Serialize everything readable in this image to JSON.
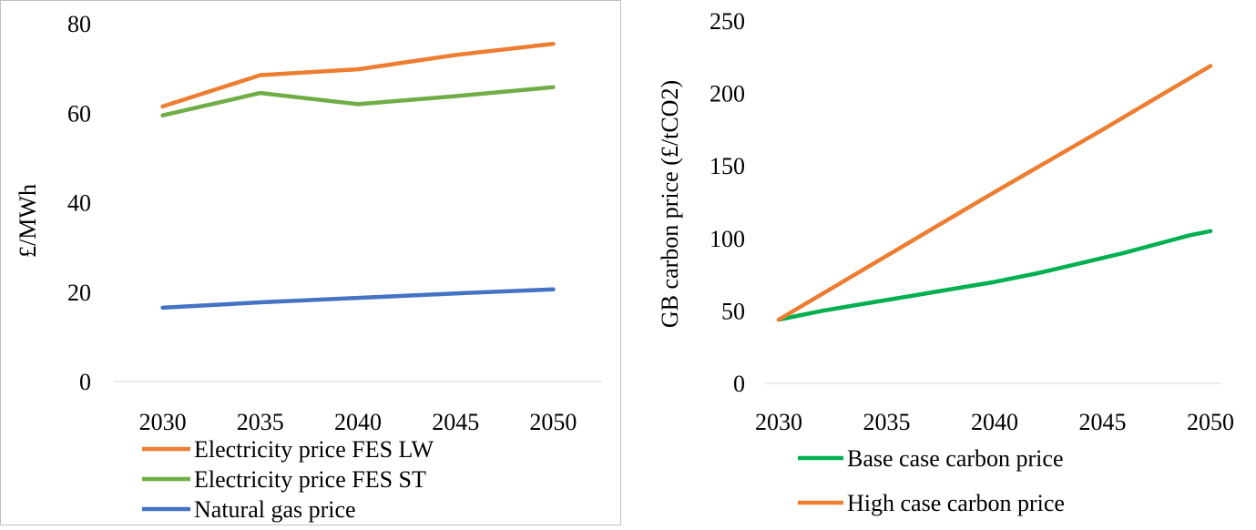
{
  "chart_data": [
    {
      "type": "line",
      "ylabel": "£/MWh",
      "ylim": [
        0,
        80
      ],
      "yticks": [
        0,
        20,
        40,
        60,
        80
      ],
      "categories": [
        "2030",
        "2035",
        "2040",
        "2045",
        "2050"
      ],
      "grid": false,
      "legend_position": "bottom",
      "series": [
        {
          "name": "Electricity price FES LW",
          "color": "#ED7D31",
          "values": [
            61.5,
            68.5,
            69.8,
            73.0,
            75.5
          ]
        },
        {
          "name": "Electricity price FES ST",
          "color": "#70AD47",
          "values": [
            59.5,
            64.5,
            62.0,
            63.8,
            65.8
          ]
        },
        {
          "name": "Natural gas price",
          "color": "#4472C4",
          "values": [
            16.5,
            17.7,
            18.7,
            19.7,
            20.6
          ]
        }
      ]
    },
    {
      "type": "line",
      "ylabel": "GB carbon price (£/tCO2)",
      "ylim": [
        0,
        250
      ],
      "yticks": [
        0,
        50,
        100,
        150,
        200,
        250
      ],
      "xlim": [
        2030,
        2050
      ],
      "xticks": [
        2030,
        2035,
        2040,
        2045,
        2050
      ],
      "grid": false,
      "legend_position": "bottom",
      "series": [
        {
          "name": "Base case carbon price",
          "color": "#00B050",
          "x": [
            2030,
            2032,
            2034,
            2036,
            2038,
            2040,
            2042,
            2044,
            2046,
            2048,
            2049,
            2050
          ],
          "y": [
            44,
            50,
            55,
            60,
            65,
            70,
            76,
            83,
            90,
            98,
            102,
            105
          ]
        },
        {
          "name": "High case carbon price",
          "color": "#ED7D31",
          "x": [
            2030,
            2035,
            2040,
            2045,
            2050
          ],
          "y": [
            44,
            88,
            132,
            175,
            219
          ]
        }
      ]
    }
  ]
}
